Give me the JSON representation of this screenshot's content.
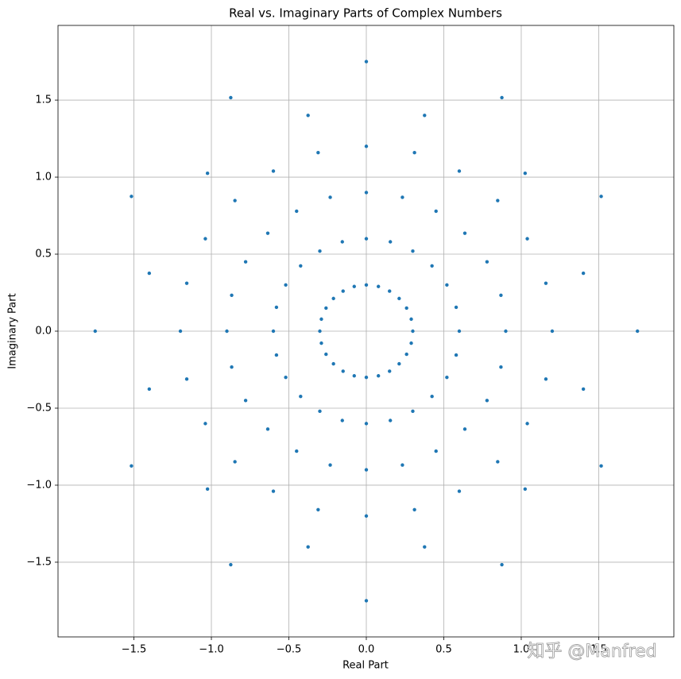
{
  "chart_data": {
    "type": "scatter",
    "title": "Real vs. Imaginary Parts of Complex Numbers",
    "x_label": "Real Part",
    "y_label": "Imaginary Part",
    "watermark": "知乎 @Manfred",
    "color": "#1f77b4",
    "grid": true,
    "xlim": [
      -1.99,
      1.985
    ],
    "ylim": [
      -1.985,
      1.985
    ],
    "xticks": [
      {
        "value": -1.5,
        "label": "−1.5"
      },
      {
        "value": -1,
        "label": "−1.0"
      },
      {
        "value": -0.5,
        "label": "−0.5"
      },
      {
        "value": 0,
        "label": "0.0"
      },
      0.5,
      {
        "value": 1,
        "label": "1.0"
      },
      1.5
    ],
    "yticks": [
      {
        "value": -1.5,
        "label": "−1.5"
      },
      {
        "value": -1,
        "label": "−1.0"
      },
      {
        "value": -0.5,
        "label": "−0.5"
      },
      {
        "value": 0,
        "label": "0.0"
      },
      0.5,
      {
        "value": 1,
        "label": "1.0"
      },
      1.5
    ],
    "x": [
      0.3,
      0.6,
      0.9,
      1.2,
      1.75,
      0.29,
      0.58,
      0.869,
      1.159,
      1.401,
      0.26,
      0.52,
      0.779,
      1.039,
      1.516,
      0.212,
      0.424,
      0.636,
      0.848,
      1.025,
      0.15,
      0.3,
      0.45,
      0.6,
      0.875,
      0.078,
      0.155,
      0.233,
      0.311,
      0.376,
      0,
      0,
      0,
      0,
      0,
      -0.078,
      -0.155,
      -0.233,
      -0.311,
      -0.376,
      -0.15,
      -0.3,
      -0.45,
      -0.6,
      -0.875,
      -0.212,
      -0.424,
      -0.636,
      -0.848,
      -1.025,
      -0.26,
      -0.52,
      -0.779,
      -1.039,
      -1.516,
      -0.29,
      -0.58,
      -0.869,
      -1.159,
      -1.401,
      -0.3,
      -0.6,
      -0.9,
      -1.2,
      -1.75,
      -0.29,
      -0.58,
      -0.869,
      -1.159,
      -1.401,
      -0.26,
      -0.52,
      -0.779,
      -1.039,
      -1.516,
      -0.212,
      -0.424,
      -0.636,
      -0.848,
      -1.025,
      -0.15,
      -0.3,
      -0.45,
      -0.6,
      -0.875,
      -0.078,
      -0.155,
      -0.233,
      -0.311,
      -0.376,
      0,
      0,
      0,
      0,
      0,
      0.078,
      0.155,
      0.233,
      0.311,
      0.376,
      0.15,
      0.3,
      0.45,
      0.6,
      0.875,
      0.212,
      0.424,
      0.636,
      0.848,
      1.025,
      0.26,
      0.52,
      0.779,
      1.039,
      1.516,
      0.29,
      0.58,
      0.869,
      1.159,
      1.401
    ],
    "y": [
      0,
      0,
      0,
      0,
      0,
      0.078,
      0.155,
      0.233,
      0.311,
      0.376,
      0.15,
      0.3,
      0.45,
      0.6,
      0.875,
      0.212,
      0.424,
      0.636,
      0.848,
      1.025,
      0.26,
      0.52,
      0.779,
      1.039,
      1.516,
      0.29,
      0.58,
      0.869,
      1.159,
      1.401,
      0.3,
      0.6,
      0.9,
      1.2,
      1.75,
      0.29,
      0.58,
      0.869,
      1.159,
      1.401,
      0.26,
      0.52,
      0.779,
      1.039,
      1.516,
      0.212,
      0.424,
      0.636,
      0.848,
      1.025,
      0.15,
      0.3,
      0.45,
      0.6,
      0.875,
      0.078,
      0.155,
      0.233,
      0.311,
      0.376,
      0,
      0,
      0,
      0,
      0,
      -0.078,
      -0.155,
      -0.233,
      -0.311,
      -0.376,
      -0.15,
      -0.3,
      -0.45,
      -0.6,
      -0.875,
      -0.212,
      -0.424,
      -0.636,
      -0.848,
      -1.025,
      -0.26,
      -0.52,
      -0.779,
      -1.039,
      -1.516,
      -0.29,
      -0.58,
      -0.869,
      -1.159,
      -1.401,
      -0.3,
      -0.6,
      -0.9,
      -1.2,
      -1.75,
      -0.29,
      -0.58,
      -0.869,
      -1.159,
      -1.401,
      -0.26,
      -0.52,
      -0.779,
      -1.039,
      -1.516,
      -0.212,
      -0.424,
      -0.636,
      -0.848,
      -1.025,
      -0.15,
      -0.3,
      -0.45,
      -0.6,
      -0.875,
      -0.078,
      -0.155,
      -0.233,
      -0.311,
      -0.376
    ]
  }
}
